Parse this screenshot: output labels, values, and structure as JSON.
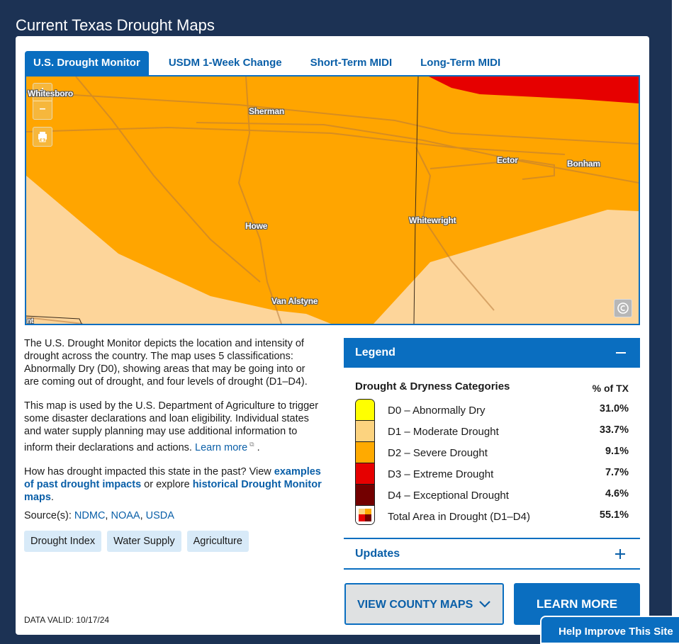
{
  "page": {
    "title": "Current Texas Drought Maps"
  },
  "tabs": [
    {
      "label": "U.S. Drought Monitor",
      "active": true
    },
    {
      "label": "USDM 1-Week Change",
      "active": false
    },
    {
      "label": "Short-Term MIDI",
      "active": false
    },
    {
      "label": "Long-Term MIDI",
      "active": false
    }
  ],
  "map": {
    "zoom_in": "+",
    "zoom_out": "–",
    "cities": {
      "whitesboro": "Whitesboro",
      "sherman": "Sherman",
      "ector": "Ector",
      "bonham": "Bonham",
      "howe": "Howe",
      "whitewright": "Whitewright",
      "van_alstyne": "Van Alstyne",
      "partial": "nt"
    }
  },
  "description": {
    "p1": "The U.S. Drought Monitor depicts the location and intensity of drought across the country. The map uses 5 classifications: Abnormally Dry (D0), showing areas that may be going into or are coming out of drought, and four levels of drought (D1–D4).",
    "p2_text": "This map is used by the U.S. Department of Agriculture to trigger some disaster declarations and loan eligibility. Individual states and water supply planning may use additional information to inform their declarations and actions. ",
    "p2_link": "Learn more",
    "p2_end": ".",
    "p3_a": "How has drought impacted this state in the past? View ",
    "p3_link1": "examples of past drought impacts",
    "p3_b": " or explore ",
    "p3_link2": "historical Drought Monitor maps",
    "p3_end": ".",
    "source_label": "Source(s): ",
    "sources": [
      "NDMC",
      "NOAA",
      "USDA"
    ],
    "separator": ", "
  },
  "tags": [
    "Drought Index",
    "Water Supply",
    "Agriculture"
  ],
  "data_valid": "DATA VALID: 10/17/24",
  "legend": {
    "header": "Legend",
    "category_title": "Drought & Dryness Categories",
    "pct_title": "% of TX",
    "rows": [
      {
        "label": "D0 – Abnormally Dry",
        "pct": "31.0%",
        "color": "#ffff00"
      },
      {
        "label": "D1 – Moderate Drought",
        "pct": "33.7%",
        "color": "#fcd37f"
      },
      {
        "label": "D2 – Severe Drought",
        "pct": "9.1%",
        "color": "#ffaa00"
      },
      {
        "label": "D3 – Extreme Drought",
        "pct": "7.7%",
        "color": "#e60000"
      },
      {
        "label": "D4 – Exceptional Drought",
        "pct": "4.6%",
        "color": "#730000"
      },
      {
        "label": "Total Area in Drought (D1–D4)",
        "pct": "55.1%",
        "color": ""
      }
    ]
  },
  "updates": {
    "label": "Updates"
  },
  "buttons": {
    "county_maps": "VIEW COUNTY MAPS",
    "learn_more": "LEARN MORE"
  },
  "help": {
    "label": "Help Improve This Site"
  }
}
